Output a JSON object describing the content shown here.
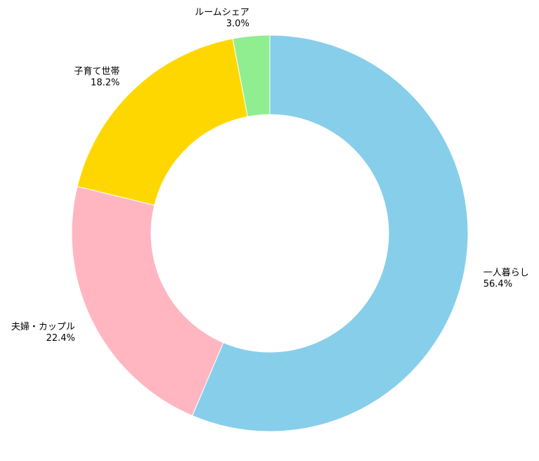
{
  "chart_data": {
    "type": "pie",
    "subtype": "donut",
    "title": "",
    "start": "top",
    "direction": "clockwise",
    "slices": [
      {
        "label": "一人暮らし",
        "value": 56.4,
        "value_label": "56.4%",
        "color": "#87CEEB"
      },
      {
        "label": "夫婦・カップル",
        "value": 22.4,
        "value_label": "22.4%",
        "color": "#FFB6C1"
      },
      {
        "label": "子育て世帯",
        "value": 18.2,
        "value_label": "18.2%",
        "color": "#FFD700"
      },
      {
        "label": "ルームシェア",
        "value": 3.0,
        "value_label": "3.0%",
        "color": "#90EE90"
      }
    ],
    "legend": "none"
  }
}
